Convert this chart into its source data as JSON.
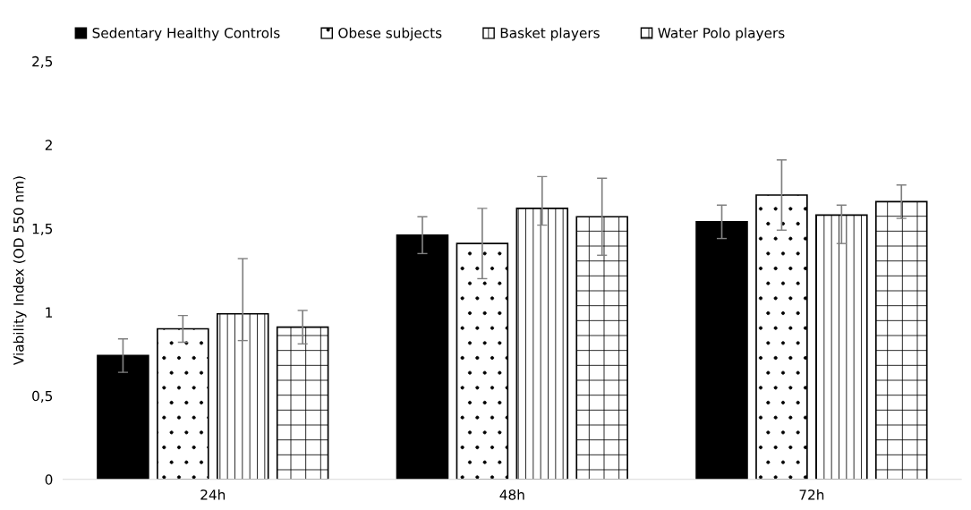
{
  "chart_data": {
    "type": "bar",
    "ylabel": "Viability Index (OD 550 nm)",
    "categories": [
      "24h",
      "48h",
      "72h"
    ],
    "series": [
      {
        "name": "Sedentary Healthy Controls",
        "color": "#000000",
        "values": [
          0.74,
          1.46,
          1.54
        ],
        "errors": [
          0.1,
          0.11,
          0.1
        ]
      },
      {
        "name": "Obese subjects",
        "color": "#ffffff",
        "values": [
          0.9,
          1.41,
          1.7
        ],
        "errors": [
          0.08,
          0.21,
          0.21
        ]
      },
      {
        "name": "Basket players",
        "color": "#ffffff",
        "values": [
          0.99,
          1.62,
          1.58
        ],
        "errors": [
          [
            0.83,
            1.32
          ],
          [
            1.52,
            1.81
          ],
          [
            1.41,
            1.64
          ]
        ]
      },
      {
        "name": "Water Polo players",
        "color": "#ffffff",
        "values": [
          0.91,
          1.57,
          1.66
        ],
        "errors": [
          0.1,
          0.23,
          0.1
        ]
      }
    ],
    "ylim": [
      0,
      2.5
    ],
    "yticks": [
      0,
      {
        "value": 0.5,
        "label": "0,5"
      },
      1,
      {
        "value": 1.5,
        "label": "1,5"
      },
      2,
      {
        "value": 2.5,
        "label": "2,5"
      }
    ],
    "legend": "top",
    "grid": false
  }
}
